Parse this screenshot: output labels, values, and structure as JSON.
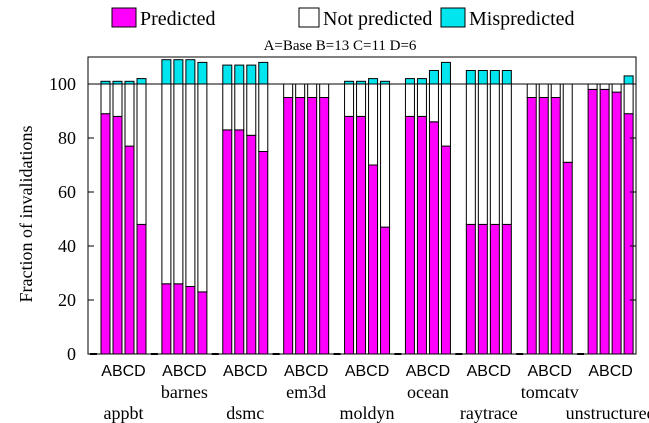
{
  "chart_data": {
    "type": "bar",
    "stacked": true,
    "title": "",
    "subtitle": "A=Base   B=13   C=11   D=6",
    "xlabel": "",
    "ylabel": "Fraction of invalidations",
    "ylim": [
      0,
      110
    ],
    "yticks": [
      0,
      20,
      40,
      60,
      80,
      100
    ],
    "reference_line": 100,
    "grid": false,
    "legend_position": "top",
    "variant_labels": [
      "A",
      "B",
      "C",
      "D"
    ],
    "variant_label_text": "ABCD",
    "benchmarks": [
      "appbt",
      "barnes",
      "dsmc",
      "em3d",
      "moldyn",
      "ocean",
      "raytrace",
      "tomcatv",
      "unstructured"
    ],
    "series": [
      {
        "name": "Predicted",
        "color": "#ff00ff",
        "values": [
          [
            89,
            88,
            77,
            48
          ],
          [
            26,
            26,
            25,
            23
          ],
          [
            83,
            83,
            81,
            75
          ],
          [
            95,
            95,
            95,
            95
          ],
          [
            88,
            88,
            70,
            47
          ],
          [
            88,
            88,
            86,
            77
          ],
          [
            48,
            48,
            48,
            48
          ],
          [
            95,
            95,
            95,
            71
          ],
          [
            98,
            98,
            97,
            89
          ]
        ]
      },
      {
        "name": "Not predicted",
        "color": "#ffffff",
        "values": [
          [
            11,
            12,
            23,
            52
          ],
          [
            74,
            74,
            75,
            77
          ],
          [
            17,
            17,
            19,
            25
          ],
          [
            5,
            5,
            5,
            5
          ],
          [
            12,
            12,
            30,
            53
          ],
          [
            12,
            12,
            14,
            23
          ],
          [
            52,
            52,
            52,
            52
          ],
          [
            5,
            5,
            5,
            29
          ],
          [
            2,
            2,
            3,
            11
          ]
        ]
      },
      {
        "name": "Mispredicted",
        "color": "#00e5ee",
        "values": [
          [
            1,
            1,
            1,
            2
          ],
          [
            9,
            9,
            9,
            8
          ],
          [
            7,
            7,
            7,
            8
          ],
          [
            0,
            0,
            0,
            0
          ],
          [
            1,
            1,
            2,
            1
          ],
          [
            2,
            2,
            5,
            8
          ],
          [
            5,
            5,
            5,
            5
          ],
          [
            0,
            0,
            0,
            0
          ],
          [
            0,
            0,
            0,
            3
          ]
        ]
      }
    ]
  }
}
